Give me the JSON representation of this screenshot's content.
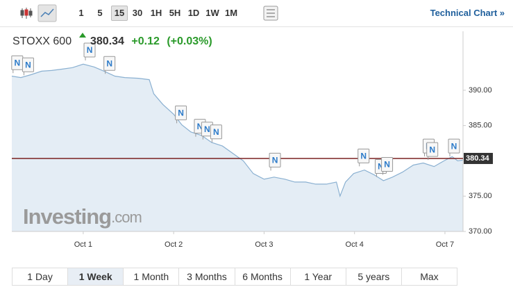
{
  "toolbar": {
    "intervals": [
      "1",
      "5",
      "15",
      "30",
      "1H",
      "5H",
      "1D",
      "1W",
      "1M"
    ],
    "selected_interval": 2,
    "technical_link": "Technical Chart »"
  },
  "header": {
    "name": "STOXX 600",
    "price": "380.34",
    "change": "+0.12",
    "change_percent": "(+0.03%)"
  },
  "watermark": {
    "brand": "Investing",
    "suffix": ".com"
  },
  "ranges": {
    "tabs": [
      "1 Day",
      "1 Week",
      "1 Month",
      "3 Months",
      "6 Months",
      "1 Year",
      "5 years",
      "Max"
    ],
    "selected": 1
  },
  "chart_data": {
    "type": "area",
    "series": [
      {
        "color": "#8ab0d1",
        "x": [
          0.21,
          0.31,
          0.42,
          0.54,
          0.65,
          0.77,
          0.88,
          1.0,
          1.12,
          1.23,
          1.35,
          1.46,
          1.61,
          1.73,
          1.78,
          1.88,
          2.0,
          2.09,
          2.19,
          2.31,
          2.42,
          2.54,
          2.65,
          2.77,
          2.88,
          3.0,
          3.11,
          3.23,
          3.34,
          3.46,
          3.57,
          3.69,
          3.8,
          3.84,
          3.9,
          3.99,
          4.11,
          4.22,
          4.32,
          4.42,
          4.53,
          4.65,
          4.76,
          4.88,
          4.99,
          5.08,
          5.14,
          5.2
        ],
        "values": [
          392.0,
          391.8,
          392.2,
          392.7,
          392.8,
          393.0,
          393.2,
          393.7,
          393.3,
          392.7,
          392.0,
          391.8,
          391.7,
          391.5,
          389.5,
          388.0,
          386.6,
          385.1,
          384.1,
          383.6,
          382.6,
          382.1,
          381.1,
          380.0,
          378.2,
          377.4,
          377.7,
          377.4,
          377.0,
          377.0,
          376.7,
          376.7,
          377.0,
          375.0,
          377.0,
          378.2,
          378.7,
          378.0,
          377.2,
          377.7,
          378.4,
          379.4,
          379.7,
          379.2,
          380.0,
          380.6,
          380.0,
          380.1
        ]
      }
    ],
    "last_value": 380.34,
    "last_value_color": "#7a2020",
    "xlim": [
      0.21,
      5.2
    ],
    "xticks": [
      {
        "value": 1,
        "label": "Oct 1"
      },
      {
        "value": 2,
        "label": "Oct 2"
      },
      {
        "value": 3,
        "label": "Oct 3"
      },
      {
        "value": 4,
        "label": "Oct 4"
      },
      {
        "value": 5,
        "label": "Oct 7"
      }
    ],
    "ylim": [
      370,
      395.4
    ],
    "yticks": [
      {
        "value": 370,
        "label": "370.00"
      },
      {
        "value": 375,
        "label": "375.00"
      },
      {
        "value": 385,
        "label": "385.00"
      },
      {
        "value": 390,
        "label": "390.00"
      }
    ],
    "news_markers": [
      {
        "x": 0.27,
        "y": 393.9,
        "label": "N"
      },
      {
        "x": 0.39,
        "y": 393.6,
        "label": "N"
      },
      {
        "x": 1.07,
        "y": 395.7,
        "label": "N"
      },
      {
        "x": 1.29,
        "y": 393.8,
        "label": "N"
      },
      {
        "x": 2.08,
        "y": 386.8,
        "label": "N"
      },
      {
        "x": 2.29,
        "y": 384.9,
        "label": "N"
      },
      {
        "x": 2.37,
        "y": 384.5,
        "label": "N"
      },
      {
        "x": 2.47,
        "y": 384.1,
        "label": "N"
      },
      {
        "x": 3.12,
        "y": 380.1,
        "label": "N"
      },
      {
        "x": 4.1,
        "y": 380.7,
        "label": "N"
      },
      {
        "x": 4.29,
        "y": 379.2,
        "label": "N"
      },
      {
        "x": 4.36,
        "y": 379.5,
        "label": "N"
      },
      {
        "x": 4.82,
        "y": 382.1,
        "label": "N"
      },
      {
        "x": 4.86,
        "y": 381.6,
        "label": "N"
      },
      {
        "x": 5.1,
        "y": 382.1,
        "label": "N"
      }
    ]
  }
}
